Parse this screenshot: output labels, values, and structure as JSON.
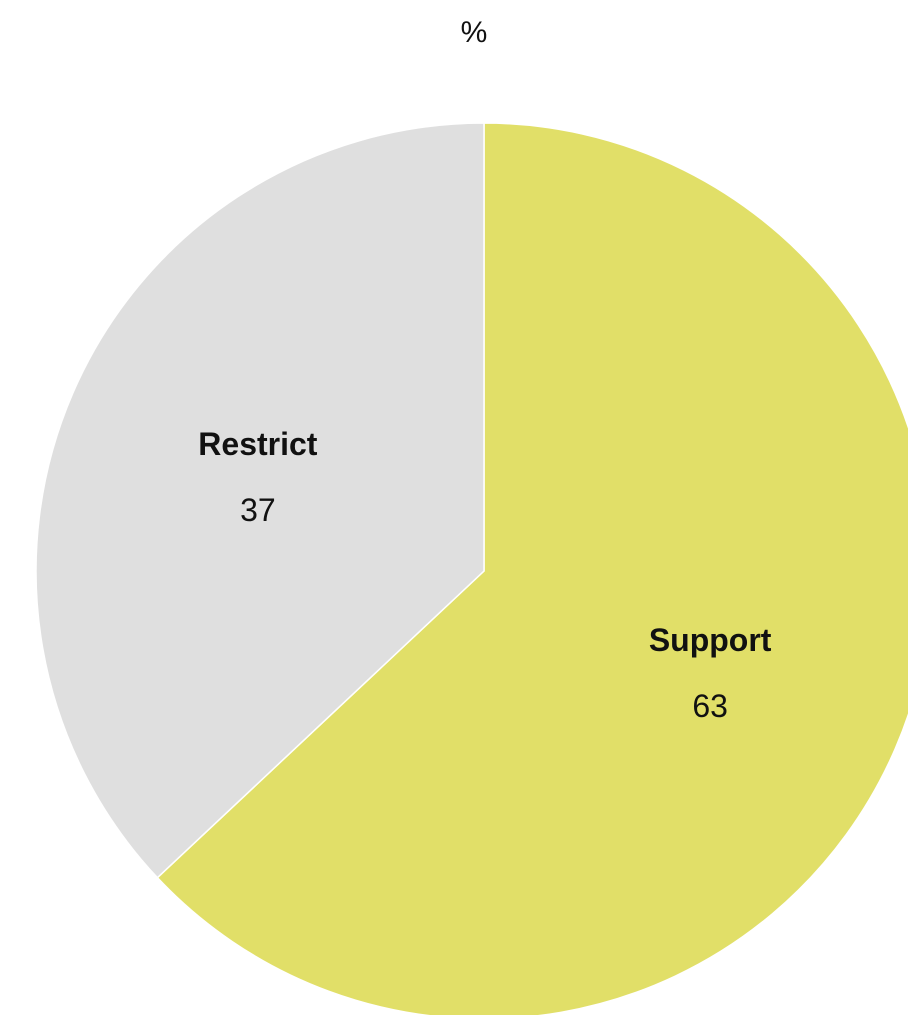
{
  "chart_data": {
    "type": "pie",
    "title": "%",
    "slices": [
      {
        "label": "Support",
        "value": 63,
        "value_label": "63",
        "color": "#e1df68"
      },
      {
        "label": "Restrict",
        "value": 37,
        "value_label": "37",
        "color": "#dfdfdf"
      }
    ],
    "start": "12 o'clock",
    "direction": "clockwise",
    "slice_separator_color": "#ffffff",
    "legend": "none"
  }
}
